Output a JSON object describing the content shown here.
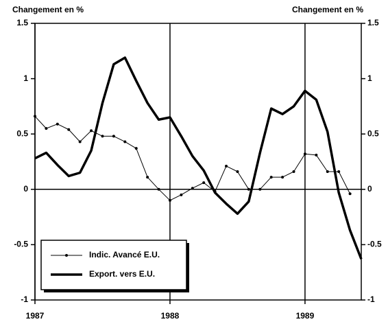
{
  "chart_data": {
    "type": "line",
    "y_label": "Changement en %",
    "y2_label": "Changement en %",
    "x": [
      0,
      1,
      2,
      3,
      4,
      5,
      6,
      7,
      8,
      9,
      10,
      11,
      12,
      13,
      14,
      15,
      16,
      17,
      18,
      19,
      20,
      21,
      22,
      23,
      24,
      25,
      26,
      27,
      28,
      29
    ],
    "xlim": [
      0,
      29
    ],
    "xticks": [
      {
        "value": 0,
        "label": "1987"
      },
      {
        "value": 12,
        "label": "1988"
      },
      {
        "value": 24,
        "label": "1989"
      }
    ],
    "ylim": [
      -1,
      1.5
    ],
    "yticks": [
      1.5,
      1,
      0.5,
      0,
      -0.5,
      -1
    ],
    "y2lim": [
      -1,
      1.5
    ],
    "y2ticks": [
      1.5,
      1,
      0.5,
      0,
      -0.5,
      -1
    ],
    "legend": "lower left",
    "series": [
      {
        "name": "Indic. Avancé E.U.",
        "color": "#000000",
        "width": 1,
        "markers": true,
        "values": [
          0.66,
          0.55,
          0.59,
          0.54,
          0.43,
          0.53,
          0.48,
          0.48,
          0.43,
          0.37,
          0.11,
          0.0,
          -0.1,
          -0.05,
          0.01,
          0.06,
          -0.02,
          0.21,
          0.16,
          0.0,
          0.0,
          0.11,
          0.11,
          0.16,
          0.32,
          0.31,
          0.16,
          0.16,
          -0.04,
          null
        ]
      },
      {
        "name": "Export. vers E.U.",
        "color": "#000000",
        "width": 3.5,
        "markers": false,
        "values": [
          0.28,
          0.33,
          0.22,
          0.12,
          0.15,
          0.35,
          0.78,
          1.13,
          1.19,
          0.98,
          0.78,
          0.63,
          0.65,
          0.48,
          0.3,
          0.17,
          -0.03,
          -0.13,
          -0.22,
          -0.11,
          0.33,
          0.73,
          0.68,
          0.75,
          0.89,
          0.81,
          0.52,
          -0.03,
          -0.37,
          -0.63
        ]
      }
    ]
  }
}
